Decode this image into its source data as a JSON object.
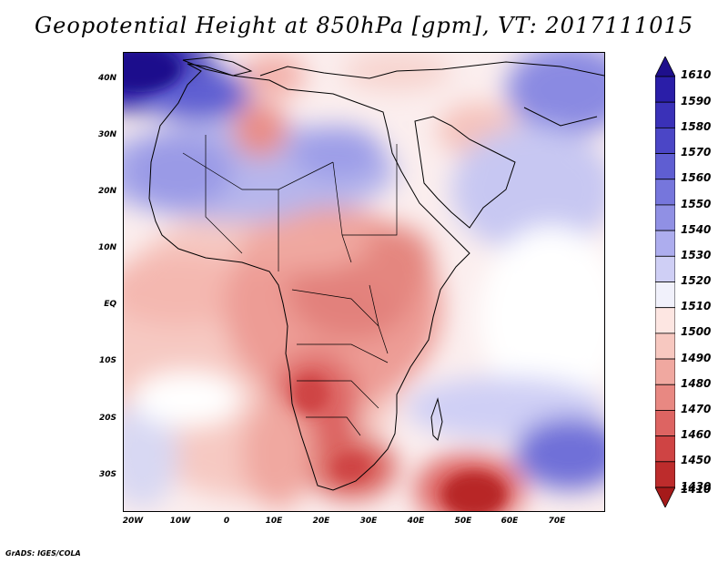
{
  "title": "Geopotential Height at 850hPa [gpm], VT: 2017111015",
  "credit": "GrADS: IGES/COLA",
  "lat_ticks": [
    "40N",
    "30N",
    "20N",
    "10N",
    "EQ",
    "10S",
    "20S",
    "30S"
  ],
  "lon_ticks": [
    "20W",
    "10W",
    "0",
    "10E",
    "20E",
    "30E",
    "40E",
    "50E",
    "60E",
    "70E"
  ],
  "colorbar": {
    "labels": [
      "1610",
      "1590",
      "1580",
      "1570",
      "1560",
      "1550",
      "1540",
      "1530",
      "1520",
      "1510",
      "1500",
      "1490",
      "1480",
      "1470",
      "1460",
      "1450",
      "1430",
      "1410"
    ],
    "colors": [
      "#1e0f8c",
      "#2a1ea8",
      "#3a31b8",
      "#4b46c6",
      "#5f5ed2",
      "#7676dc",
      "#9090e4",
      "#adadee",
      "#cfcff5",
      "#f1f1fb",
      "#fde6e2",
      "#f7c8c0",
      "#f0a8a0",
      "#e88882",
      "#dd6462",
      "#cf4444",
      "#bd2c2c",
      "#a51a1a"
    ]
  },
  "chart_data": {
    "type": "heatmap",
    "variable": "Geopotential Height at 850hPa",
    "units": "gpm",
    "valid_time": "2017111015",
    "lon_range": [
      -20,
      80
    ],
    "lat_range": [
      -37,
      45
    ],
    "levels": [
      1410,
      1430,
      1450,
      1460,
      1470,
      1480,
      1490,
      1500,
      1510,
      1520,
      1530,
      1540,
      1550,
      1560,
      1570,
      1580,
      1590,
      1610
    ]
  }
}
